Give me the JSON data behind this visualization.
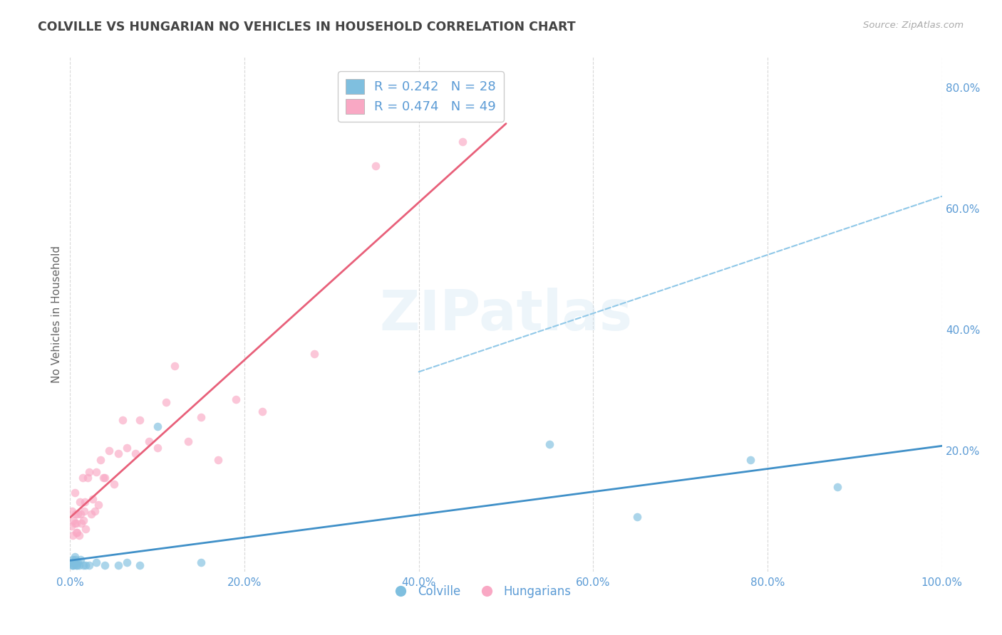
{
  "title": "COLVILLE VS HUNGARIAN NO VEHICLES IN HOUSEHOLD CORRELATION CHART",
  "source": "Source: ZipAtlas.com",
  "ylabel": "No Vehicles in Household",
  "colville_R": 0.242,
  "colville_N": 28,
  "hungarian_R": 0.474,
  "hungarian_N": 49,
  "colville_x": [
    0.001,
    0.002,
    0.003,
    0.003,
    0.004,
    0.004,
    0.005,
    0.005,
    0.006,
    0.007,
    0.008,
    0.009,
    0.01,
    0.012,
    0.015,
    0.018,
    0.022,
    0.03,
    0.04,
    0.055,
    0.065,
    0.08,
    0.1,
    0.15,
    0.55,
    0.65,
    0.78,
    0.88
  ],
  "colville_y": [
    0.015,
    0.01,
    0.02,
    0.01,
    0.015,
    0.01,
    0.025,
    0.015,
    0.02,
    0.01,
    0.01,
    0.015,
    0.01,
    0.02,
    0.01,
    0.01,
    0.01,
    0.015,
    0.01,
    0.01,
    0.015,
    0.01,
    0.24,
    0.015,
    0.21,
    0.09,
    0.185,
    0.14
  ],
  "hungarian_x": [
    0.001,
    0.002,
    0.003,
    0.004,
    0.005,
    0.005,
    0.006,
    0.007,
    0.007,
    0.008,
    0.009,
    0.01,
    0.011,
    0.012,
    0.013,
    0.014,
    0.015,
    0.016,
    0.017,
    0.018,
    0.02,
    0.022,
    0.024,
    0.026,
    0.028,
    0.03,
    0.032,
    0.035,
    0.038,
    0.04,
    0.045,
    0.05,
    0.055,
    0.06,
    0.065,
    0.075,
    0.08,
    0.09,
    0.1,
    0.11,
    0.12,
    0.135,
    0.15,
    0.17,
    0.19,
    0.22,
    0.28,
    0.35,
    0.45
  ],
  "hungarian_y": [
    0.075,
    0.1,
    0.06,
    0.085,
    0.13,
    0.08,
    0.095,
    0.08,
    0.065,
    0.065,
    0.095,
    0.06,
    0.115,
    0.095,
    0.08,
    0.155,
    0.085,
    0.1,
    0.115,
    0.07,
    0.155,
    0.165,
    0.095,
    0.12,
    0.1,
    0.165,
    0.11,
    0.185,
    0.155,
    0.155,
    0.2,
    0.145,
    0.195,
    0.25,
    0.205,
    0.195,
    0.25,
    0.215,
    0.205,
    0.28,
    0.34,
    0.215,
    0.255,
    0.185,
    0.285,
    0.265,
    0.36,
    0.67,
    0.71
  ],
  "colville_color": "#7fbfdf",
  "hungarian_color": "#f9a8c4",
  "colville_line_color": "#4090c8",
  "hungarian_line_color": "#e8607a",
  "colville_dashed_color": "#90c8e8",
  "background_color": "#ffffff",
  "grid_color": "#d8d8d8",
  "title_color": "#444444",
  "axis_label_color": "#5b9bd5",
  "source_color": "#aaaaaa",
  "xlim": [
    0.0,
    1.0
  ],
  "ylim": [
    0.0,
    0.85
  ],
  "xtick_vals": [
    0.0,
    0.2,
    0.4,
    0.6,
    0.8,
    1.0
  ],
  "xtick_labels": [
    "0.0%",
    "20.0%",
    "40.0%",
    "60.0%",
    "80.0%",
    "100.0%"
  ],
  "ytick_vals": [
    0.0,
    0.2,
    0.4,
    0.6,
    0.8
  ],
  "ytick_labels": [
    "",
    "20.0%",
    "40.0%",
    "60.0%",
    "80.0%"
  ],
  "marker_size": 70,
  "marker_alpha": 0.65
}
